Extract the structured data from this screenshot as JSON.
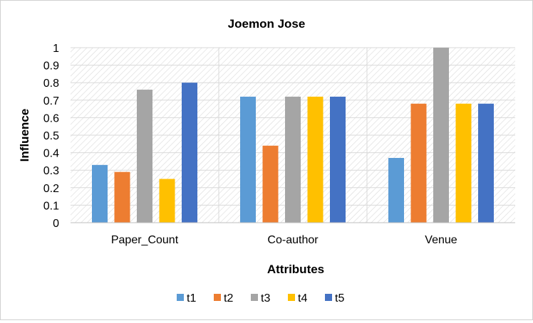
{
  "chart_data": {
    "type": "bar",
    "title": "Joemon Jose",
    "xlabel": "Attributes",
    "ylabel": "Influence",
    "categories": [
      "Paper_Count",
      "Co-author",
      "Venue"
    ],
    "ylim": [
      0,
      1
    ],
    "yticks": [
      "0",
      "0.1",
      "0.2",
      "0.3",
      "0.4",
      "0.5",
      "0.6",
      "0.7",
      "0.8",
      "0.9",
      "1"
    ],
    "grid": true,
    "legend_position": "bottom",
    "series": [
      {
        "name": "t1",
        "color": "#5B9BD5",
        "values": [
          0.33,
          0.72,
          0.37
        ]
      },
      {
        "name": "t2",
        "color": "#ED7D31",
        "values": [
          0.29,
          0.44,
          0.68
        ]
      },
      {
        "name": "t3",
        "color": "#A5A5A5",
        "values": [
          0.76,
          0.72,
          1.0
        ]
      },
      {
        "name": "t4",
        "color": "#FFC000",
        "values": [
          0.25,
          0.72,
          0.68
        ]
      },
      {
        "name": "t5",
        "color": "#4472C4",
        "values": [
          0.8,
          0.72,
          0.68
        ]
      }
    ]
  }
}
